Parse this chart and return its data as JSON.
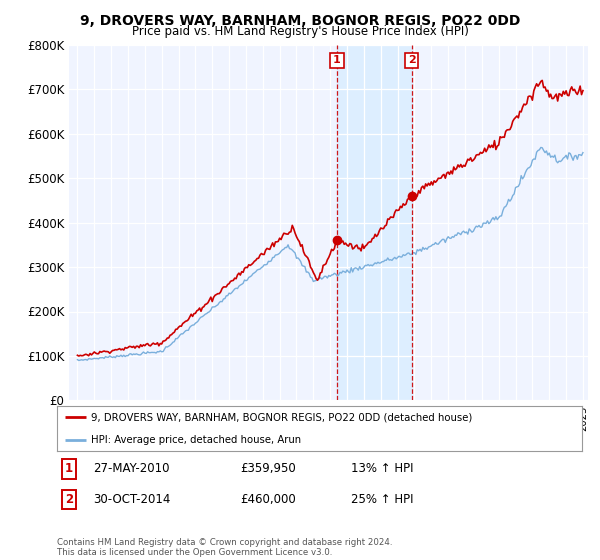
{
  "title": "9, DROVERS WAY, BARNHAM, BOGNOR REGIS, PO22 0DD",
  "subtitle": "Price paid vs. HM Land Registry's House Price Index (HPI)",
  "legend_line1": "9, DROVERS WAY, BARNHAM, BOGNOR REGIS, PO22 0DD (detached house)",
  "legend_line2": "HPI: Average price, detached house, Arun",
  "annotation1_label": "1",
  "annotation1_date": "27-MAY-2010",
  "annotation1_price": "£359,950",
  "annotation1_hpi": "13% ↑ HPI",
  "annotation2_label": "2",
  "annotation2_date": "30-OCT-2014",
  "annotation2_price": "£460,000",
  "annotation2_hpi": "25% ↑ HPI",
  "footer": "Contains HM Land Registry data © Crown copyright and database right 2024.\nThis data is licensed under the Open Government Licence v3.0.",
  "red_color": "#cc0000",
  "blue_color": "#7aafdc",
  "shade_color": "#ddeeff",
  "background_color": "#ffffff",
  "plot_bg_color": "#f0f4ff",
  "ylim": [
    0,
    800000
  ],
  "yticks": [
    0,
    100000,
    200000,
    300000,
    400000,
    500000,
    600000,
    700000,
    800000
  ],
  "ytick_labels": [
    "£0",
    "£100K",
    "£200K",
    "£300K",
    "£400K",
    "£500K",
    "£600K",
    "£700K",
    "£800K"
  ],
  "sale1_x": 2010.4,
  "sale1_y": 359950,
  "sale2_x": 2014.83,
  "sale2_y": 460000,
  "vline1_x": 2010.4,
  "vline2_x": 2014.83,
  "xmin": 1995,
  "xmax": 2025
}
